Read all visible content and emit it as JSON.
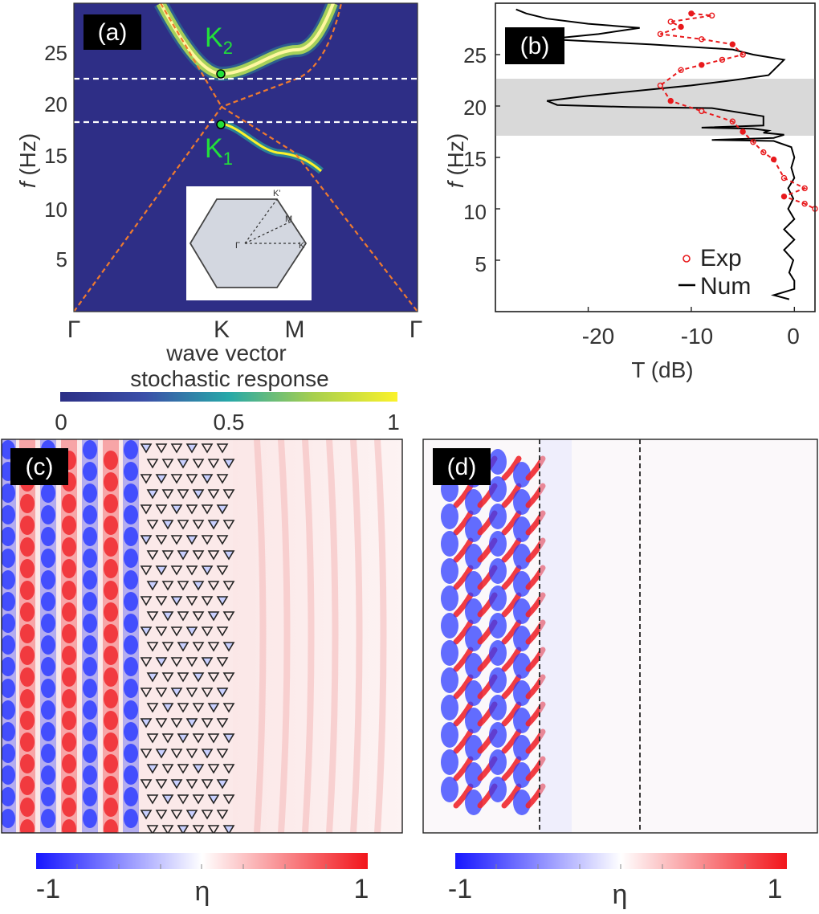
{
  "panels": {
    "a": {
      "tag": "(a)",
      "ylabel_italic": "f",
      "ylabel_rest": " (Hz)",
      "yticks": [
        "5",
        "10",
        "15",
        "20",
        "25"
      ],
      "xticks": [
        "Γ",
        "K",
        "M",
        "Γ"
      ],
      "xlabel": "wave vector",
      "k2_main": "K",
      "k2_sub": "2",
      "k1_main": "K",
      "k1_sub": "1",
      "bz_labels": {
        "kp": "K'",
        "m": "M",
        "gamma": "Γ",
        "k": "K"
      },
      "dashed_lines_hz": [
        22.5,
        18.2
      ]
    },
    "colorbar_top": {
      "label": "stochastic response",
      "ticks": [
        "0",
        "0.5",
        "1"
      ]
    },
    "b": {
      "tag": "(b)",
      "ylabel_italic": "f",
      "ylabel_rest": " (Hz)",
      "yticks": [
        "5",
        "10",
        "15",
        "20",
        "25"
      ],
      "xticks": [
        "-20",
        "-10",
        "0"
      ],
      "xlabel": "T (dB)",
      "legend": [
        {
          "label": "Exp",
          "marker": "red-open-circle",
          "color": "#e8191c"
        },
        {
          "label": "Num",
          "marker": "black-line",
          "color": "#000000"
        }
      ],
      "bandgap_hz": [
        17.5,
        23
      ]
    },
    "c": {
      "tag": "(c)"
    },
    "d": {
      "tag": "(d)"
    },
    "colorbar_c": {
      "ticks": [
        "-1",
        "1"
      ],
      "label": "η"
    },
    "colorbar_d": {
      "ticks": [
        "-1",
        "1"
      ],
      "label": "η"
    }
  },
  "colors": {
    "band_bg": "#2e2e86",
    "dispersion": "#ee7a2f",
    "k_label": "#22e03a",
    "pos": "#e8191c",
    "neg": "#1a30ff",
    "gap": "#d9d9d9"
  },
  "chart_data": [
    {
      "type": "line",
      "panel": "a",
      "ylim": [
        0,
        29
      ],
      "xticklabels": [
        "Γ",
        "K",
        "M",
        "Γ"
      ],
      "series": [
        {
          "x": [
            "Γ",
            "K",
            "M",
            "Γ"
          ],
          "values": [
            0,
            18.2,
            15,
            0
          ]
        },
        {
          "x": [
            "Γ",
            "K",
            "M",
            "Γ"
          ],
          "values": [
            29,
            22.5,
            25,
            29
          ]
        }
      ],
      "dispersion_lines": [
        {
          "x": [
            "Γ",
            "K",
            "M",
            "Γ"
          ],
          "values": [
            0,
            20.3,
            24,
            0
          ]
        },
        {
          "x": [
            "Γ",
            "K",
            "M",
            "Γ"
          ],
          "values": [
            29,
            20.3,
            16,
            0
          ]
        }
      ],
      "dirac_points": [
        {
          "x": "K",
          "y": 22.5
        },
        {
          "x": "K",
          "y": 18.2
        }
      ]
    },
    {
      "type": "line",
      "panel": "b",
      "xlim": [
        -29,
        2
      ],
      "ylim": [
        0,
        30
      ],
      "series": [
        {
          "name": "Num",
          "points": [
            [
              -0.5,
              1.2
            ],
            [
              -2,
              1.6
            ],
            [
              0,
              2.2
            ],
            [
              0,
              3
            ],
            [
              -0.5,
              3.8
            ],
            [
              -0.1,
              5
            ],
            [
              -1,
              6
            ],
            [
              0,
              7
            ],
            [
              -1,
              8
            ],
            [
              0,
              9
            ],
            [
              -0.6,
              10
            ],
            [
              -0.1,
              11
            ],
            [
              -0.6,
              12
            ],
            [
              0,
              13
            ],
            [
              -0.3,
              14
            ],
            [
              0,
              15
            ],
            [
              -0.3,
              16
            ],
            [
              -2,
              16.6
            ],
            [
              -8,
              16.7
            ],
            [
              -2,
              16.9
            ],
            [
              -1,
              17.2
            ],
            [
              -3,
              17.4
            ],
            [
              -2.5,
              17.6
            ],
            [
              -4,
              17.8
            ],
            [
              -9,
              17.9
            ],
            [
              -3,
              18.1
            ],
            [
              -3,
              19
            ],
            [
              -8,
              19.8
            ],
            [
              -16,
              19.9
            ],
            [
              -23,
              20.1
            ],
            [
              -24,
              20.5
            ],
            [
              -20,
              21
            ],
            [
              -15,
              21.5
            ],
            [
              -10,
              22
            ],
            [
              -6,
              22.5
            ],
            [
              -2.5,
              23
            ],
            [
              -1.5,
              24
            ],
            [
              -1,
              24.5
            ],
            [
              -4,
              25
            ],
            [
              -6,
              25.5
            ],
            [
              -14,
              26
            ],
            [
              -24,
              26.5
            ],
            [
              -19,
              27
            ],
            [
              -15,
              27.6
            ],
            [
              -20,
              28
            ],
            [
              -24,
              28.5
            ],
            [
              -26,
              29
            ],
            [
              -27,
              29.4
            ]
          ]
        },
        {
          "name": "Exp",
          "points": [
            [
              -10,
              29
            ],
            [
              -8,
              28.8
            ],
            [
              -12,
              28.2
            ],
            [
              -11,
              27.7
            ],
            [
              -13,
              27
            ],
            [
              -9,
              26.5
            ],
            [
              -6,
              26
            ],
            [
              -5,
              25
            ],
            [
              -7,
              24.5
            ],
            [
              -9,
              24
            ],
            [
              -11,
              23.5
            ],
            [
              -13,
              22
            ],
            [
              -12,
              20.5
            ],
            [
              -9,
              19.5
            ],
            [
              -6,
              18.5
            ],
            [
              -5,
              17.5
            ],
            [
              -4,
              16.5
            ],
            [
              -3,
              15.5
            ],
            [
              -2,
              14.8
            ],
            [
              -1,
              13
            ],
            [
              1,
              12
            ],
            [
              -1,
              11.2
            ],
            [
              1,
              10.5
            ],
            [
              2,
              10
            ]
          ]
        }
      ],
      "bandgap": [
        17.5,
        23
      ]
    }
  ]
}
